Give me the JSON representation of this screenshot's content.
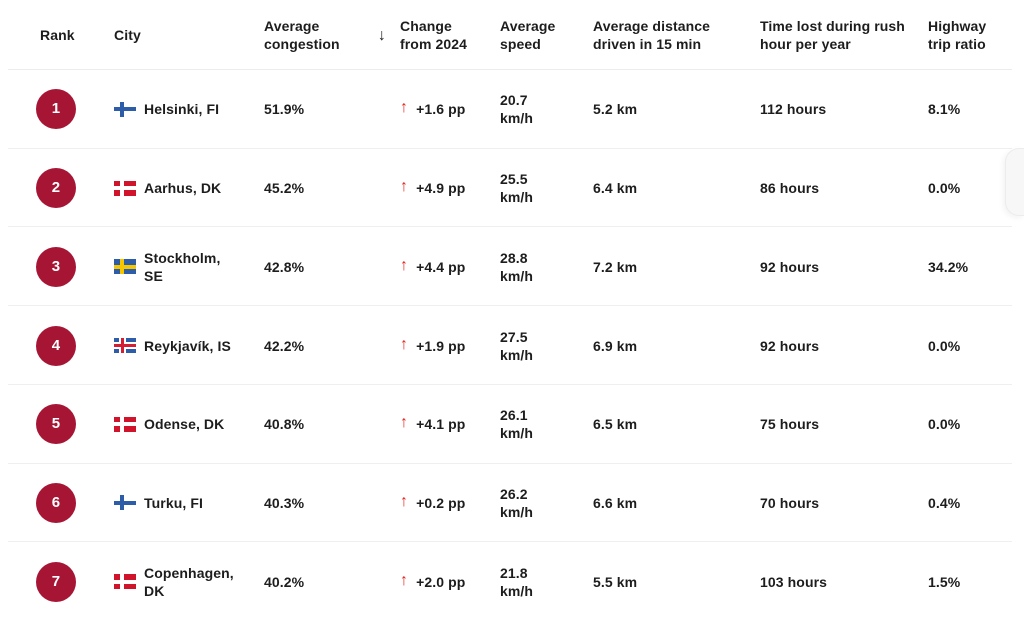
{
  "table": {
    "columns": [
      {
        "id": "rank",
        "label": "Rank"
      },
      {
        "id": "city",
        "label": "City"
      },
      {
        "id": "congestion",
        "label": "Average congestion",
        "sorted": true
      },
      {
        "id": "change",
        "label": "Change from 2024"
      },
      {
        "id": "speed",
        "label": "Average speed"
      },
      {
        "id": "distance",
        "label": "Average distance driven in 15 min"
      },
      {
        "id": "time_lost",
        "label": "Time lost during rush hour per year"
      },
      {
        "id": "highway",
        "label": "Highway trip ratio"
      }
    ],
    "sort_icon": "↓",
    "up_arrow": "↑",
    "colors": {
      "rank_badge": "#a71535",
      "change_arrow": "#e3261f",
      "text": "#1d1d1d",
      "divider": "#efefef"
    },
    "flags": {
      "fi": {
        "country": "Finland",
        "field": "#ffffff",
        "cross": "#2d5da9"
      },
      "dk": {
        "country": "Denmark",
        "field": "#cf142b",
        "cross": "#ffffff"
      },
      "se": {
        "country": "Sweden",
        "field": "#2d5da9",
        "cross": "#f6c700"
      },
      "is": {
        "country": "Iceland",
        "field": "#2d5da9",
        "cross": "#d21f36",
        "fimbriation": "#ffffff"
      }
    },
    "rows": [
      {
        "rank": "1",
        "flag": "fi",
        "city": "Helsinki, FI",
        "congestion": "51.9%",
        "change": "+1.6 pp",
        "speed": "20.7\nkm/h",
        "distance": "5.2 km",
        "time_lost": "112 hours",
        "highway": "8.1%"
      },
      {
        "rank": "2",
        "flag": "dk",
        "city": "Aarhus, DK",
        "congestion": "45.2%",
        "change": "+4.9 pp",
        "speed": "25.5\nkm/h",
        "distance": "6.4 km",
        "time_lost": "86 hours",
        "highway": "0.0%"
      },
      {
        "rank": "3",
        "flag": "se",
        "city": "Stockholm,\nSE",
        "congestion": "42.8%",
        "change": "+4.4 pp",
        "speed": "28.8\nkm/h",
        "distance": "7.2 km",
        "time_lost": "92 hours",
        "highway": "34.2%"
      },
      {
        "rank": "4",
        "flag": "is",
        "city": "Reykjavík, IS",
        "congestion": "42.2%",
        "change": "+1.9 pp",
        "speed": "27.5\nkm/h",
        "distance": "6.9 km",
        "time_lost": "92 hours",
        "highway": "0.0%"
      },
      {
        "rank": "5",
        "flag": "dk",
        "city": "Odense, DK",
        "congestion": "40.8%",
        "change": "+4.1 pp",
        "speed": "26.1\nkm/h",
        "distance": "6.5 km",
        "time_lost": "75 hours",
        "highway": "0.0%"
      },
      {
        "rank": "6",
        "flag": "fi",
        "city": "Turku, FI",
        "congestion": "40.3%",
        "change": "+0.2 pp",
        "speed": "26.2\nkm/h",
        "distance": "6.6 km",
        "time_lost": "70 hours",
        "highway": "0.4%"
      },
      {
        "rank": "7",
        "flag": "dk",
        "city": "Copenhagen,\nDK",
        "congestion": "40.2%",
        "change": "+2.0 pp",
        "speed": "21.8\nkm/h",
        "distance": "5.5 km",
        "time_lost": "103 hours",
        "highway": "1.5%"
      }
    ]
  }
}
